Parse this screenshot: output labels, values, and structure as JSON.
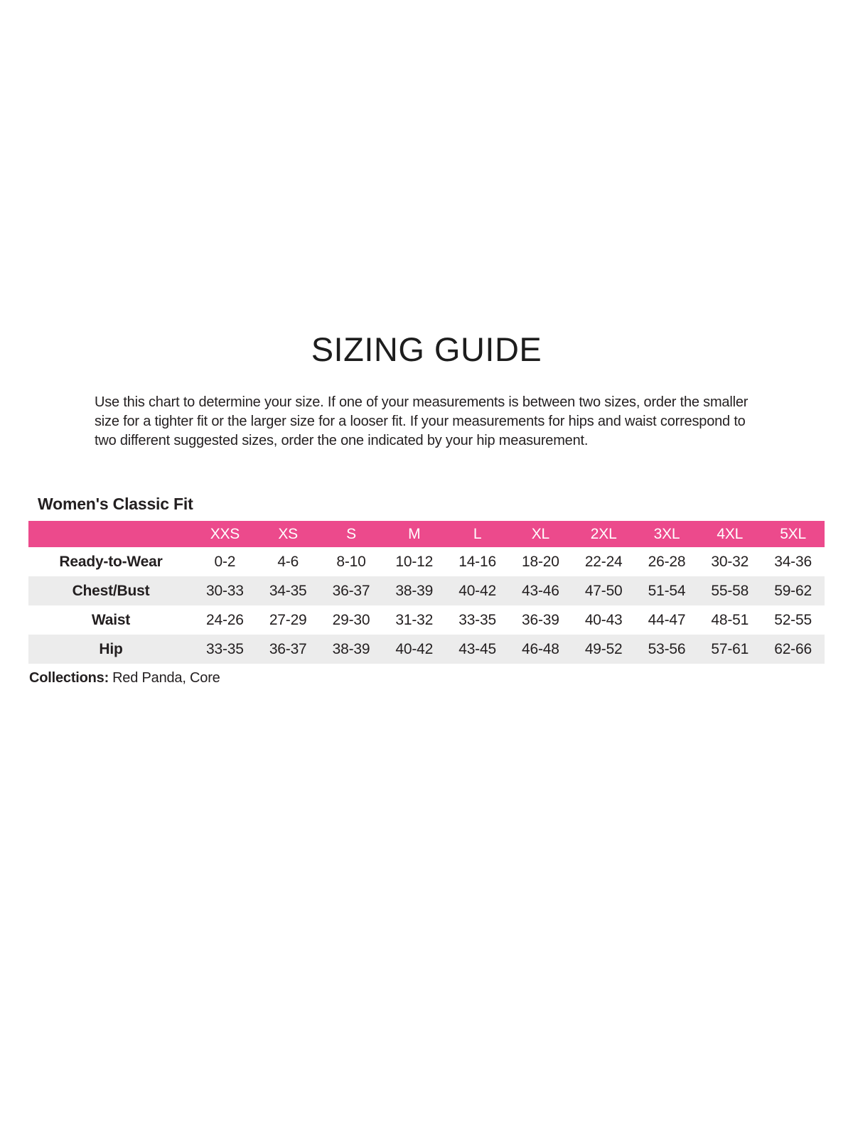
{
  "page": {
    "title": "SIZING GUIDE",
    "intro_lines": [
      "Use this chart to determine your size. If one of your measurements is between two sizes, order the smaller",
      "size for a tighter fit or the larger size for a looser fit. If your measurements for hips and waist correspond to",
      "two different suggested sizes, order the one indicated by your hip measurement."
    ]
  },
  "section": {
    "heading": "Women's Classic Fit"
  },
  "size_table": {
    "columns": [
      "XXS",
      "XS",
      "S",
      "M",
      "L",
      "XL",
      "2XL",
      "3XL",
      "4XL",
      "5XL"
    ],
    "rows": [
      {
        "label": "Ready-to-Wear",
        "values": [
          "0-2",
          "4-6",
          "8-10",
          "10-12",
          "14-16",
          "18-20",
          "22-24",
          "26-28",
          "30-32",
          "34-36"
        ]
      },
      {
        "label": "Chest/Bust",
        "values": [
          "30-33",
          "34-35",
          "36-37",
          "38-39",
          "40-42",
          "43-46",
          "47-50",
          "51-54",
          "55-58",
          "59-62"
        ]
      },
      {
        "label": "Waist",
        "values": [
          "24-26",
          "27-29",
          "29-30",
          "31-32",
          "33-35",
          "36-39",
          "40-43",
          "44-47",
          "48-51",
          "52-55"
        ]
      },
      {
        "label": "Hip",
        "values": [
          "33-35",
          "36-37",
          "38-39",
          "40-42",
          "43-45",
          "46-48",
          "49-52",
          "53-56",
          "57-61",
          "62-66"
        ]
      }
    ]
  },
  "footer": {
    "collections_label": "Collections:",
    "collections_value": "Red Panda, Core"
  },
  "colors": {
    "accent_pink": "#EC4A8C",
    "row_stripe": "#ECECEC",
    "text": "#231F20"
  }
}
